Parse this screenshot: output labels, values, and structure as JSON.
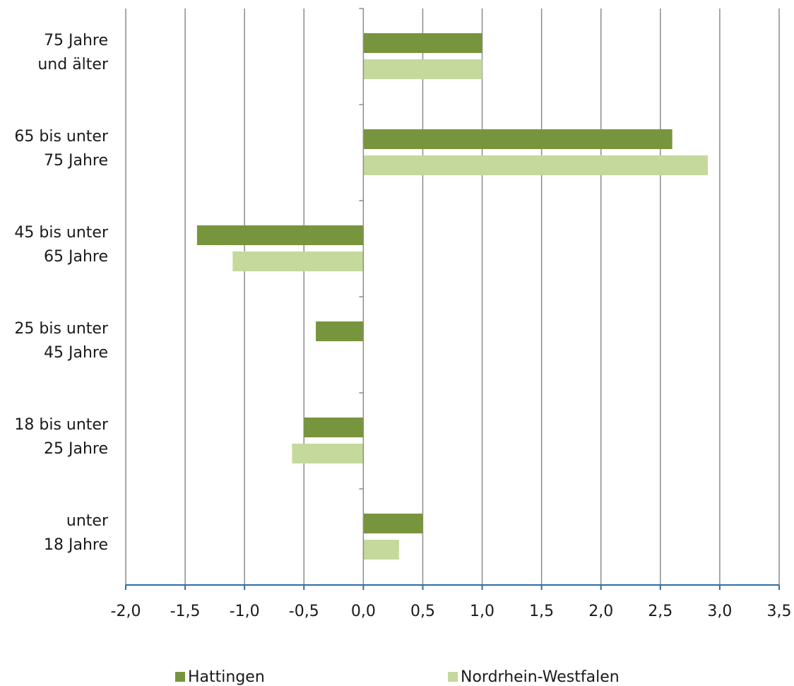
{
  "chart_data": {
    "type": "bar",
    "orientation": "horizontal",
    "categories": [
      "75 Jahre\nund älter",
      "65 bis unter\n75 Jahre",
      "45 bis unter\n65 Jahre",
      "25 bis unter\n45 Jahre",
      "18 bis unter\n25 Jahre",
      "unter\n18 Jahre"
    ],
    "series": [
      {
        "name": "Hattingen",
        "values": [
          1.0,
          2.6,
          -1.4,
          -0.4,
          -0.5,
          0.5
        ],
        "color": "#77953d"
      },
      {
        "name": "Nordrhein-Westfalen",
        "values": [
          1.0,
          2.9,
          -1.1,
          0.0,
          -0.6,
          0.3
        ],
        "color": "#c4d99b"
      }
    ],
    "xlim": [
      -2.0,
      3.5
    ],
    "xticks": [
      "-2,0",
      "-1,5",
      "-1,0",
      "-0,5",
      "0,0",
      "0,5",
      "1,0",
      "1,5",
      "2,0",
      "2,5",
      "3,0",
      "3,5"
    ],
    "grid": true,
    "legend_position": "bottom",
    "gridline_color": "#8c8c8c",
    "axis_color": "#2e6da4"
  }
}
